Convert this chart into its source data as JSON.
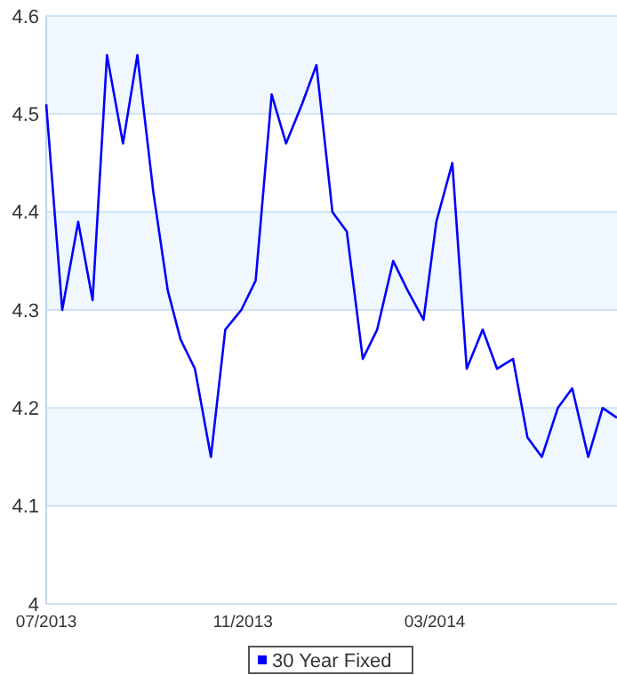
{
  "chart_data": {
    "type": "line",
    "x": [
      "2013-07-01",
      "2013-07-11",
      "2013-07-21",
      "2013-07-30",
      "2013-08-08",
      "2013-08-18",
      "2013-08-27",
      "2013-09-06",
      "2013-09-15",
      "2013-09-23",
      "2013-10-02",
      "2013-10-12",
      "2013-10-21",
      "2013-10-31",
      "2013-11-09",
      "2013-11-19",
      "2013-11-28",
      "2013-12-08",
      "2013-12-17",
      "2013-12-27",
      "2014-01-05",
      "2014-01-15",
      "2014-01-24",
      "2014-02-03",
      "2014-02-12",
      "2014-02-22",
      "2014-03-02",
      "2014-03-12",
      "2014-03-21",
      "2014-03-31",
      "2014-04-09",
      "2014-04-19",
      "2014-04-28",
      "2014-05-07",
      "2014-05-17",
      "2014-05-26",
      "2014-06-05",
      "2014-06-14",
      "2014-06-23"
    ],
    "series": [
      {
        "name": "30 Year Fixed",
        "color": "#0000ff",
        "values": [
          4.51,
          4.3,
          4.39,
          4.31,
          4.56,
          4.47,
          4.56,
          4.42,
          4.32,
          4.27,
          4.24,
          4.15,
          4.28,
          4.3,
          4.33,
          4.52,
          4.47,
          4.51,
          4.55,
          4.4,
          4.38,
          4.25,
          4.28,
          4.35,
          4.32,
          4.29,
          4.39,
          4.45,
          4.24,
          4.28,
          4.24,
          4.25,
          4.17,
          4.15,
          4.2,
          4.22,
          4.15,
          4.2,
          4.19
        ]
      }
    ],
    "xlim": [
      "2013-07-01",
      "2014-06-23"
    ],
    "xticks": [
      {
        "value": "2013-07-01",
        "label": "07/2013"
      },
      {
        "value": "2013-11-01",
        "label": "11/2013"
      },
      {
        "value": "2014-03-01",
        "label": "03/2014"
      }
    ],
    "ylim": [
      4,
      4.6
    ],
    "yticks": [
      4,
      4.1,
      4.2,
      4.3,
      4.4,
      4.5,
      4.6
    ],
    "bands": [
      {
        "axis": "y",
        "from": 4.1,
        "to": 4.2,
        "color": "#f0f7fe"
      },
      {
        "axis": "y",
        "from": 4.3,
        "to": 4.4,
        "color": "#f0f7fe"
      },
      {
        "axis": "y",
        "from": 4.5,
        "to": 4.6,
        "color": "#f0f7fe"
      }
    ],
    "grid": "y",
    "legend": "bottom",
    "marker": "none",
    "line_style": "solid"
  }
}
